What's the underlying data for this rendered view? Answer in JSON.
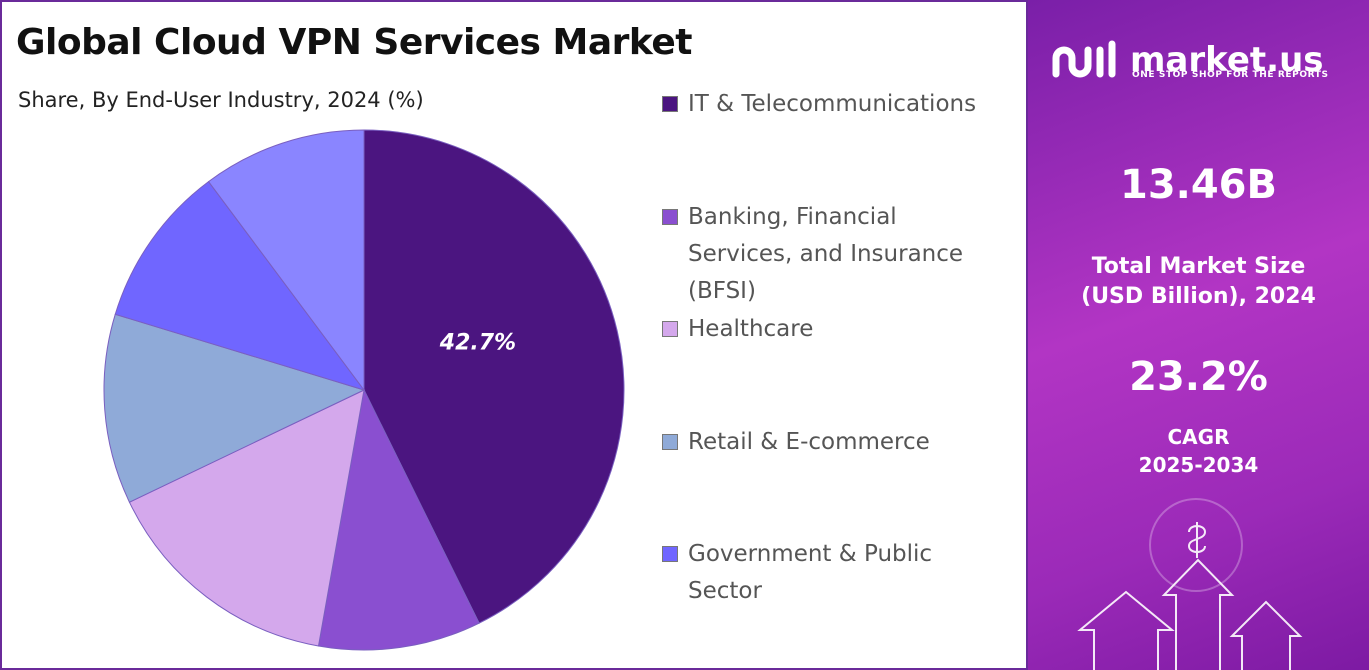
{
  "chart_data": {
    "type": "pie",
    "title": "Global Cloud VPN Services Market",
    "subtitle": "Share, By End-User Industry, 2024 (%)",
    "categories": [
      "IT & Telecommunications",
      "Banking, Financial Services, and Insurance (BFSI)",
      "Healthcare",
      "Retail & E-commerce",
      "Government & Public Sector",
      null
    ],
    "values": [
      42.7,
      10.1,
      15.1,
      11.8,
      10.1,
      10.2
    ],
    "value_labels": [
      "42.7%",
      null,
      null,
      null,
      null,
      null
    ],
    "colors": [
      "#4b1580",
      "#8a4fd0",
      "#d4a8ec",
      "#8faad8",
      "#7066ff",
      "#8a85ff"
    ]
  },
  "panel": {
    "brand": "market.us",
    "tagline": "ONE STOP SHOP FOR THE REPORTS",
    "market_size": "13.46B",
    "market_size_label": [
      "Total Market Size",
      "(USD Billion), 2024"
    ],
    "cagr": "23.2%",
    "cagr_label": [
      "CAGR",
      "2025-2034"
    ]
  }
}
